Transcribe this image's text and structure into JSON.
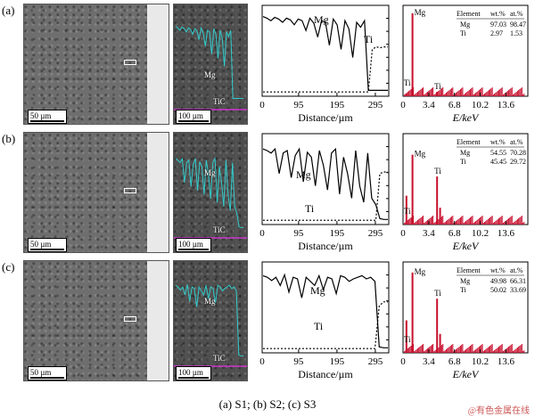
{
  "rows": [
    {
      "label": "(a)",
      "sem_scale": "50 µm",
      "map_scale": "100 µm",
      "map_mg": "Mg",
      "map_tic": "TiC",
      "line": {
        "mg_label": "Mg",
        "ti_label": "Ti",
        "x_ticks": [
          "0",
          "95",
          "195",
          "295"
        ],
        "xlabel": "Distance/µm",
        "mg_profile": [
          0.95,
          0.93,
          0.9,
          0.94,
          0.92,
          0.88,
          0.93,
          0.91,
          0.85,
          0.92,
          0.9,
          0.78,
          0.93,
          0.87,
          0.7,
          0.9,
          0.88,
          0.6,
          0.92,
          0.85,
          0.55,
          0.9,
          0.8,
          0.45,
          0.88,
          0.82,
          0.9,
          0.05,
          0.05,
          0.05,
          0.05,
          0.05,
          0.05
        ],
        "ti_profile": [
          0.03,
          0.03,
          0.03,
          0.03,
          0.03,
          0.03,
          0.03,
          0.03,
          0.03,
          0.03,
          0.03,
          0.03,
          0.03,
          0.03,
          0.03,
          0.03,
          0.03,
          0.03,
          0.03,
          0.03,
          0.03,
          0.03,
          0.03,
          0.03,
          0.03,
          0.03,
          0.03,
          0.03,
          0.55,
          0.58,
          0.57,
          0.58,
          0.58
        ]
      },
      "eds": {
        "x_ticks": [
          "0",
          "3.4",
          "6.8",
          "10.2",
          "13.6"
        ],
        "xlabel": "E/keV",
        "peak_mg": "Mg",
        "peak_ti_low": "Ti",
        "peak_ti_high": "Ti",
        "table_head": [
          "Element",
          "wt.%",
          "at.%"
        ],
        "table_rows": [
          [
            "Mg",
            "97.03",
            "98.47"
          ],
          [
            "Ti",
            "2.97",
            "1.53"
          ]
        ],
        "mg_peak_height": 0.95,
        "ti_peak_height": 0.05
      }
    },
    {
      "label": "(b)",
      "sem_scale": "50 µm",
      "map_scale": "100 µm",
      "map_mg": "Mg",
      "map_tic": "TiC",
      "line": {
        "mg_label": "Mg",
        "ti_label": "Ti",
        "x_ticks": [
          "0",
          "95",
          "195",
          "295"
        ],
        "xlabel": "Distance/µm",
        "mg_profile": [
          0.9,
          0.88,
          0.85,
          0.9,
          0.6,
          0.85,
          0.88,
          0.55,
          0.82,
          0.9,
          0.5,
          0.86,
          0.8,
          0.45,
          0.88,
          0.7,
          0.4,
          0.85,
          0.9,
          0.35,
          0.8,
          0.6,
          0.3,
          0.88,
          0.45,
          0.25,
          0.85,
          0.3,
          0.22,
          0.05,
          0.04,
          0.04
        ],
        "ti_profile": [
          0.03,
          0.03,
          0.03,
          0.03,
          0.03,
          0.03,
          0.03,
          0.03,
          0.03,
          0.03,
          0.03,
          0.03,
          0.03,
          0.03,
          0.03,
          0.03,
          0.03,
          0.03,
          0.03,
          0.03,
          0.03,
          0.03,
          0.03,
          0.03,
          0.03,
          0.03,
          0.03,
          0.03,
          0.03,
          0.6,
          0.62,
          0.62
        ]
      },
      "eds": {
        "x_ticks": [
          "0",
          "3.4",
          "6.8",
          "10.2",
          "13.6"
        ],
        "xlabel": "E/keV",
        "peak_mg": "Mg",
        "peak_ti_low": "Ti",
        "peak_ti_high": "Ti",
        "table_head": [
          "Element",
          "wt.%",
          "at.%"
        ],
        "table_rows": [
          [
            "Mg",
            "54.55",
            "70.28"
          ],
          [
            "Ti",
            "45.45",
            "29.72"
          ]
        ],
        "mg_peak_height": 0.8,
        "ti_peak_height": 0.55
      }
    },
    {
      "label": "(c)",
      "sem_scale": "50 µm",
      "map_scale": "100 µm",
      "map_mg": "Mg",
      "map_tic": "TiC",
      "line": {
        "mg_label": "Mg",
        "ti_label": "Ti",
        "x_ticks": [
          "0",
          "95",
          "195",
          "295"
        ],
        "xlabel": "Distance/µm",
        "mg_profile": [
          0.92,
          0.9,
          0.86,
          0.9,
          0.8,
          0.93,
          0.72,
          0.9,
          0.88,
          0.65,
          0.9,
          0.85,
          0.8,
          0.92,
          0.75,
          0.9,
          0.88,
          0.7,
          0.92,
          0.9,
          0.85,
          0.88,
          0.9,
          0.92,
          0.88,
          0.9,
          0.85,
          0.05,
          0.04,
          0.04
        ],
        "ti_profile": [
          0.03,
          0.03,
          0.03,
          0.03,
          0.03,
          0.03,
          0.03,
          0.03,
          0.03,
          0.03,
          0.03,
          0.03,
          0.03,
          0.03,
          0.03,
          0.03,
          0.03,
          0.03,
          0.03,
          0.03,
          0.03,
          0.03,
          0.03,
          0.03,
          0.03,
          0.03,
          0.03,
          0.55,
          0.6,
          0.6
        ]
      },
      "eds": {
        "x_ticks": [
          "0",
          "3.4",
          "6.8",
          "10.2",
          "13.6"
        ],
        "xlabel": "E/keV",
        "peak_mg": "Mg",
        "peak_ti_low": "Ti",
        "peak_ti_high": "Ti",
        "table_head": [
          "Element",
          "wt.%",
          "at.%"
        ],
        "table_rows": [
          [
            "Mg",
            "49.98",
            "66.31"
          ],
          [
            "Ti",
            "50.02",
            "33.69"
          ]
        ],
        "mg_peak_height": 0.92,
        "ti_peak_height": 0.62
      }
    }
  ],
  "caption": "(a) S1; (b) S2; (c) S3",
  "watermark": "@有色金属在线",
  "colors": {
    "eds_bars": "#c8102e",
    "map_line": "#33cccc",
    "map_tic": "#cc33cc"
  }
}
